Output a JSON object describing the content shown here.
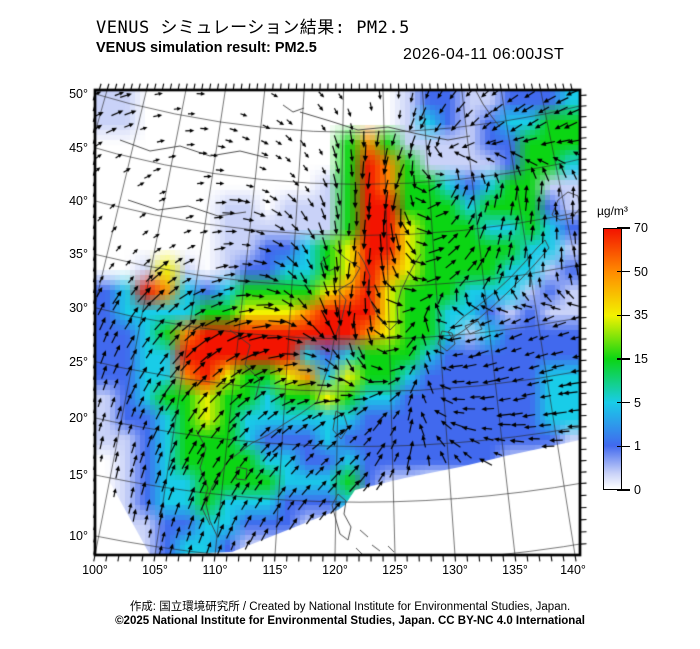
{
  "header": {
    "title_jp": "VENUS シミュレーション結果: PM2.5",
    "title_en": "VENUS simulation result: PM2.5",
    "datetime": "2026-04-11 06:00JST"
  },
  "map": {
    "y_axis_labels": [
      "50°",
      "45°",
      "40°",
      "35°",
      "30°",
      "25°",
      "20°",
      "15°",
      "10°"
    ],
    "x_axis_labels": [
      "100°",
      "105°",
      "110°",
      "115°",
      "120°",
      "125°",
      "130°",
      "135°",
      "140°"
    ]
  },
  "colorbar": {
    "unit": "µg/m³",
    "tick_labels": [
      "70",
      "50",
      "35",
      "15",
      "5",
      "1",
      "0"
    ]
  },
  "footer": {
    "credit": "作成: 国立環境研究所 / Created by National Institute for Environmental Studies, Japan.",
    "license": "©2025 National Institute for Environmental Studies, Japan. CC BY-NC 4.0 International"
  },
  "chart_data": {
    "type": "heatmap",
    "title": "VENUS simulation result: PM2.5",
    "datetime": "2026-04-11 06:00JST",
    "variable": "PM2.5 surface concentration with wind vectors",
    "unit": "µg/m³",
    "lon_ticks_deg": [
      100,
      105,
      110,
      115,
      120,
      125,
      130,
      135,
      140
    ],
    "lat_ticks_deg": [
      50,
      45,
      40,
      35,
      30,
      25,
      20,
      15,
      10
    ],
    "colorbar_tick_values": [
      70,
      50,
      35,
      15,
      5,
      1,
      0
    ],
    "legend_position": "right",
    "level_values_ugm3": [
      0,
      0.5,
      2,
      5,
      15,
      35,
      50,
      70
    ],
    "level_colors": [
      "#ffffff",
      "#c9d2f8",
      "#4169ee",
      "#19cce8",
      "#0bd513",
      "#f2f200",
      "#ff8c00",
      "#f31400"
    ],
    "grid_cols": 24,
    "grid_rows": 22,
    "pm25_level_grid": [
      "110000000000000122112223",
      "110000000000000132123344",
      "000000000000464111122444",
      "000000000000476411112443",
      "000000000001476443234411",
      "000000110111477444344421",
      "000000111111477544433432",
      "000000112234577544444331",
      "001510122334576544443312",
      "237632344445675444333121",
      "233334455567775443321211",
      "223467777777765443132222",
      "223377777732344432222222",
      "223367544563544322222233",
      "123445443445433222222233",
      "122345433333322222222233",
      "112344432223222222222221",
      "012344443322322222221100",
      "012334444333421100000000",
      "012334333222310000000000",
      "011223322211100000000000",
      "001233211100000000000000"
    ],
    "wind_grid_cols": 12,
    "wind_grid_rows": 11,
    "wind_direction_deg": [
      [
        25,
        15,
        5,
        350,
        335,
        320,
        295,
        265,
        235,
        220,
        210,
        200
      ],
      [
        35,
        20,
        5,
        345,
        330,
        305,
        275,
        250,
        230,
        215,
        210,
        205
      ],
      [
        45,
        30,
        15,
        355,
        335,
        300,
        268,
        242,
        60,
        80,
        85,
        90
      ],
      [
        55,
        40,
        25,
        5,
        335,
        295,
        262,
        280,
        40,
        75,
        85,
        95
      ],
      [
        60,
        48,
        32,
        12,
        345,
        290,
        258,
        300,
        30,
        60,
        90,
        100
      ],
      [
        68,
        55,
        42,
        25,
        5,
        305,
        255,
        20,
        190,
        205,
        205,
        195
      ],
      [
        72,
        60,
        50,
        38,
        25,
        355,
        290,
        35,
        185,
        198,
        195,
        188
      ],
      [
        76,
        68,
        58,
        48,
        40,
        32,
        38,
        60,
        170,
        185,
        190,
        185
      ],
      [
        80,
        72,
        64,
        56,
        50,
        44,
        48,
        70,
        120,
        155,
        175,
        180
      ],
      [
        82,
        78,
        70,
        62,
        58,
        52,
        48,
        60,
        105,
        145,
        165,
        178
      ],
      [
        80,
        78,
        74,
        68,
        64,
        60,
        55,
        50,
        100,
        140,
        160,
        172
      ]
    ]
  }
}
